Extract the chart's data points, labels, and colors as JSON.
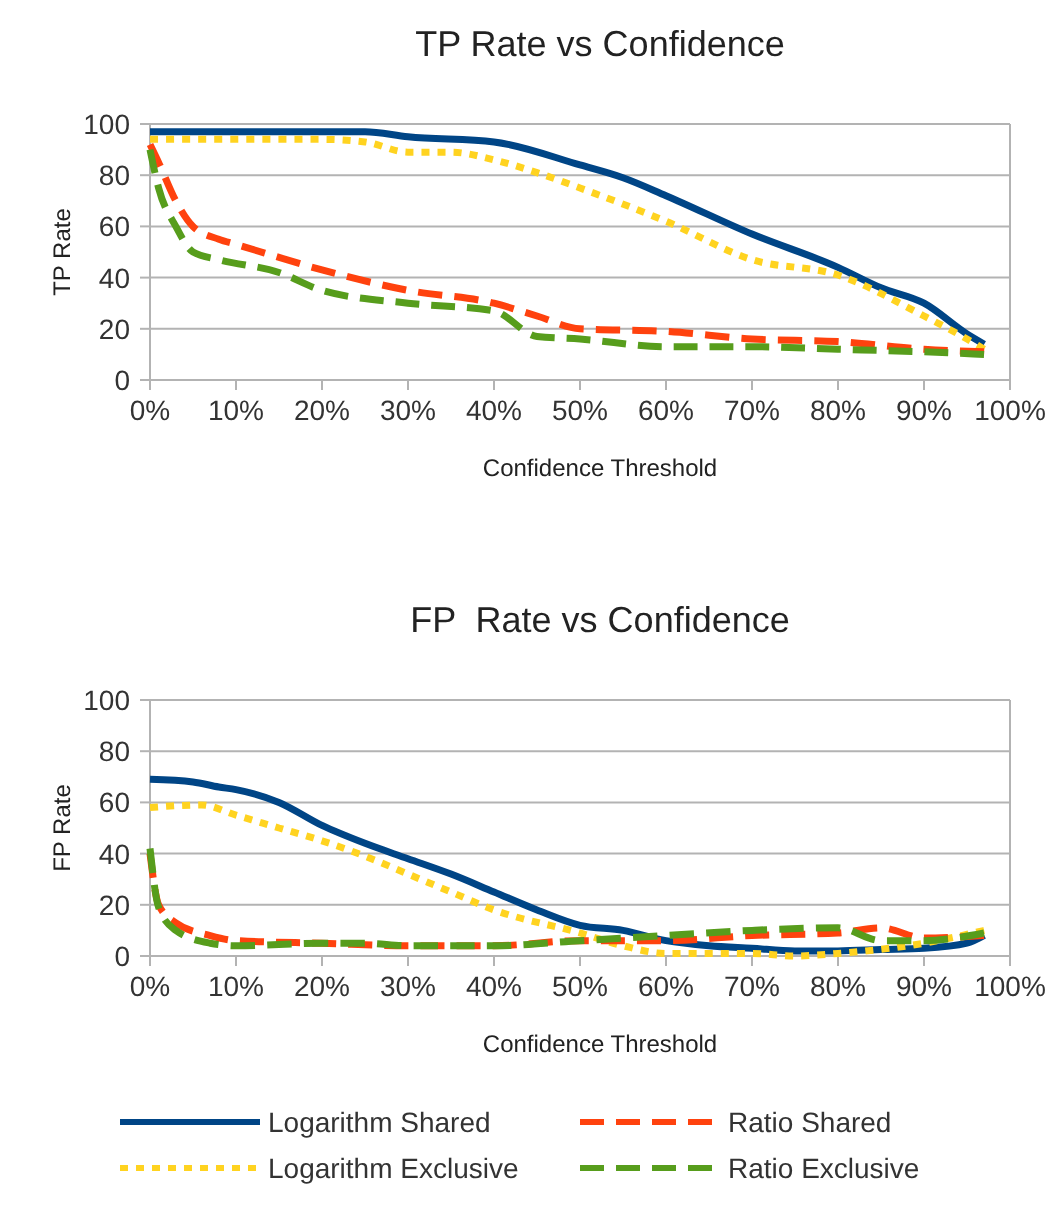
{
  "chart_data": [
    {
      "type": "line",
      "title": "TP Rate vs Confidence",
      "xlabel": "Confidence Threshold",
      "ylabel": "TP Rate",
      "xlim": [
        0,
        100
      ],
      "xticks": [
        {
          "value": 0,
          "label": "0%"
        },
        {
          "value": 10,
          "label": "10%"
        },
        {
          "value": 20,
          "label": "20%"
        },
        {
          "value": 30,
          "label": "30%"
        },
        {
          "value": 40,
          "label": "40%"
        },
        {
          "value": 50,
          "label": "50%"
        },
        {
          "value": 60,
          "label": "60%"
        },
        {
          "value": 70,
          "label": "70%"
        },
        {
          "value": 80,
          "label": "80%"
        },
        {
          "value": 90,
          "label": "90%"
        },
        {
          "value": 100,
          "label": "100%"
        }
      ],
      "ylim": [
        0,
        100
      ],
      "yticks": [
        0,
        20,
        40,
        60,
        80,
        100
      ],
      "grid": "y",
      "legend": false,
      "marker": "none",
      "series": [
        {
          "color": "#004586",
          "line_style": "solid",
          "x": [
            0,
            10,
            20,
            25,
            30,
            40,
            50,
            55,
            60,
            70,
            80,
            85,
            90,
            95,
            97
          ],
          "values": [
            97,
            97,
            97,
            97,
            95,
            93,
            84,
            79,
            72,
            57,
            44,
            36,
            30,
            18,
            14
          ]
        },
        {
          "color": "#ffd320",
          "line_style": "dotted",
          "x": [
            0,
            10,
            20,
            25,
            30,
            35,
            40,
            45,
            50,
            60,
            70,
            80,
            90,
            95,
            97
          ],
          "values": [
            94,
            94,
            94,
            93,
            89,
            89,
            86,
            81,
            75,
            62,
            47,
            41,
            25,
            16,
            12
          ]
        },
        {
          "color": "#ff420e",
          "line_style": "dashed",
          "x": [
            0,
            1,
            3,
            5,
            8,
            10,
            20,
            30,
            40,
            45,
            50,
            60,
            70,
            80,
            90,
            97
          ],
          "values": [
            92,
            85,
            70,
            60,
            55,
            53,
            43,
            35,
            30,
            25,
            20,
            19,
            16,
            15,
            12,
            11
          ]
        },
        {
          "color": "#579d1c",
          "line_style": "dashed",
          "x": [
            0,
            1,
            3,
            5,
            8,
            15,
            20,
            30,
            40,
            45,
            50,
            60,
            70,
            80,
            90,
            97
          ],
          "values": [
            90,
            75,
            60,
            50,
            47,
            42,
            35,
            30,
            27,
            17,
            16,
            13,
            13,
            12,
            11,
            10
          ]
        }
      ]
    },
    {
      "type": "line",
      "title": "FP  Rate vs Confidence",
      "xlabel": "Confidence Threshold",
      "ylabel": "FP Rate",
      "xlim": [
        0,
        100
      ],
      "xticks": [
        {
          "value": 0,
          "label": "0%"
        },
        {
          "value": 10,
          "label": "10%"
        },
        {
          "value": 20,
          "label": "20%"
        },
        {
          "value": 30,
          "label": "30%"
        },
        {
          "value": 40,
          "label": "40%"
        },
        {
          "value": 50,
          "label": "50%"
        },
        {
          "value": 60,
          "label": "60%"
        },
        {
          "value": 70,
          "label": "70%"
        },
        {
          "value": 80,
          "label": "80%"
        },
        {
          "value": 90,
          "label": "90%"
        },
        {
          "value": 100,
          "label": "100%"
        }
      ],
      "ylim": [
        0,
        100
      ],
      "yticks": [
        0,
        20,
        40,
        60,
        80,
        100
      ],
      "grid": "y",
      "legend": "bottom",
      "marker": "none",
      "series": [
        {
          "name": "Logarithm Shared",
          "color": "#004586",
          "line_style": "solid",
          "x": [
            0,
            5,
            8,
            10,
            15,
            20,
            25,
            30,
            35,
            40,
            45,
            50,
            55,
            60,
            65,
            70,
            75,
            80,
            85,
            90,
            95,
            97
          ],
          "values": [
            69,
            68,
            66,
            65,
            60,
            51,
            44,
            38,
            32,
            25,
            18,
            12,
            10,
            6,
            4,
            3,
            2,
            2,
            2.5,
            3,
            5,
            8
          ]
        },
        {
          "name": "Logarithm Exclusive",
          "color": "#ffd320",
          "line_style": "dotted",
          "x": [
            0,
            6,
            10,
            15,
            20,
            25,
            30,
            35,
            40,
            50,
            55,
            60,
            70,
            75,
            80,
            90,
            97
          ],
          "values": [
            58,
            59,
            55,
            50,
            45,
            39,
            32,
            25,
            18,
            9,
            4,
            1,
            1,
            0,
            1,
            5,
            10
          ]
        },
        {
          "name": "Ratio Shared",
          "color": "#ff420e",
          "line_style": "dashed",
          "x": [
            0,
            1,
            3,
            7,
            10,
            20,
            30,
            40,
            50,
            60,
            70,
            80,
            85,
            90,
            97
          ],
          "values": [
            40,
            20,
            13,
            8,
            6,
            5,
            4,
            4,
            6,
            6,
            8,
            9,
            11,
            7,
            8
          ]
        },
        {
          "name": "Ratio Exclusive",
          "color": "#579d1c",
          "line_style": "dashed",
          "x": [
            0,
            1,
            3,
            7,
            10,
            20,
            25,
            30,
            40,
            50,
            60,
            70,
            80,
            85,
            90,
            97
          ],
          "values": [
            42,
            19,
            10,
            5,
            4,
            5,
            5,
            4,
            4,
            6,
            8,
            10,
            11,
            6,
            6,
            9
          ]
        }
      ]
    }
  ]
}
